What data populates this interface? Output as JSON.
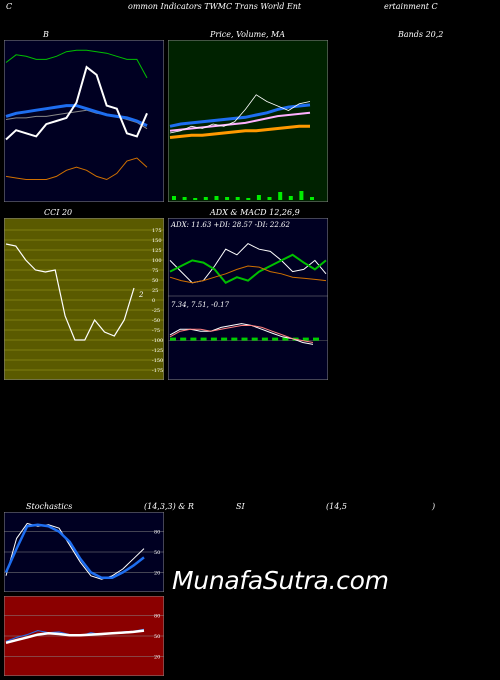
{
  "header": {
    "c": "C",
    "title": "ommon  Indicators TWMC Trans World Ent",
    "right": "ertainment C"
  },
  "labels": {
    "bb_b": "B",
    "bb_price": "Price,  Volume,  MA",
    "bb_overlap": "Bands 20,2",
    "cci": "CCI 20",
    "adx_title": "ADX  & MACD 12,26,9",
    "adx_values": "ADX: 11.63  +DI: 28.57 -DI: 22.62",
    "macd_values": "7.34,  7.51,  -0.17",
    "stoch": "Stochastics",
    "stoch_params": "(14,3,3) & R",
    "rsi_si": "SI",
    "rsi_params": "(14,5",
    "rsi_close": ")",
    "cci_last": "2",
    "watermark": "MunafaSutra.com"
  },
  "colors": {
    "bg": "#000000",
    "navy": "#000022",
    "darkgreen": "#002200",
    "olive": "#5a5a00",
    "rsi_red": "#8b0000",
    "blue": "#1e6ef0",
    "green": "#00c000",
    "orange": "#d07000",
    "white": "#ffffff"
  },
  "chart_data": [
    {
      "type": "line",
      "name": "bollinger",
      "series": [
        {
          "values": [
            88,
            93,
            92,
            90,
            90,
            92,
            95,
            96,
            96,
            95,
            94,
            92,
            90,
            90,
            78
          ]
        },
        {
          "values": [
            51,
            52,
            52,
            53,
            53,
            54,
            55,
            56,
            57,
            55,
            54,
            53,
            51,
            49,
            45
          ]
        },
        {
          "values": [
            53,
            55,
            56,
            57,
            58,
            59,
            60,
            60,
            58,
            56,
            54,
            53,
            52,
            50,
            47
          ]
        },
        {
          "values": [
            38,
            44,
            42,
            40,
            48,
            50,
            52,
            62,
            85,
            80,
            60,
            58,
            42,
            40,
            55
          ]
        },
        {
          "values": [
            14,
            13,
            12,
            12,
            12,
            14,
            18,
            20,
            18,
            14,
            12,
            16,
            24,
            26,
            20
          ]
        }
      ]
    },
    {
      "type": "line",
      "name": "price_volume_ma",
      "series": [
        {
          "values": [
            30,
            32,
            33,
            34,
            35,
            36,
            37,
            38,
            40,
            42,
            45,
            47,
            48,
            49
          ]
        },
        {
          "values": [
            26,
            27,
            28,
            29,
            30,
            31,
            32,
            33,
            35,
            37,
            39,
            40,
            41,
            42
          ]
        },
        {
          "values": [
            20,
            21,
            22,
            22,
            23,
            24,
            25,
            26,
            26,
            27,
            28,
            29,
            30,
            30
          ]
        },
        {
          "values": [
            24,
            26,
            30,
            28,
            32,
            30,
            34,
            45,
            58,
            52,
            48,
            44,
            50,
            52
          ]
        }
      ],
      "volume": [
        4,
        3,
        2,
        3,
        4,
        3,
        3,
        2,
        5,
        3,
        8,
        4,
        9,
        3
      ]
    },
    {
      "type": "line",
      "name": "cci",
      "y_ticks": [
        175,
        150,
        125,
        100,
        75,
        50,
        25,
        0,
        -25,
        -50,
        -75,
        -100,
        -125,
        -150,
        -175
      ],
      "values": [
        140,
        135,
        100,
        75,
        70,
        75,
        -40,
        -100,
        -100,
        -50,
        -80,
        -90,
        -50,
        30
      ]
    },
    {
      "type": "line",
      "name": "adx_macd",
      "adx_series": [
        {
          "values": [
            30,
            20,
            10,
            12,
            25,
            40,
            35,
            45,
            40,
            38,
            30,
            20,
            22,
            30,
            18
          ]
        },
        {
          "values": [
            20,
            25,
            30,
            28,
            22,
            10,
            15,
            12,
            20,
            25,
            30,
            35,
            28,
            22,
            30
          ]
        },
        {
          "values": [
            15,
            12,
            10,
            12,
            15,
            18,
            22,
            25,
            24,
            20,
            18,
            15,
            14,
            13,
            12
          ]
        }
      ],
      "macd_series": [
        {
          "values": [
            3,
            6,
            6,
            5,
            5,
            7,
            8,
            9,
            8,
            6,
            4,
            2,
            1,
            -1,
            -2
          ]
        },
        {
          "values": [
            2,
            5,
            6,
            6,
            5,
            6,
            7,
            8,
            8,
            7,
            5,
            3,
            1,
            0,
            -1
          ]
        }
      ],
      "hist": [
        1,
        1,
        0,
        -1,
        0,
        1,
        1,
        1,
        0,
        -1,
        -1,
        -1,
        0,
        -1,
        -1
      ]
    },
    {
      "type": "line",
      "name": "stochastics",
      "y_ticks": [
        80,
        50,
        20
      ],
      "series": [
        {
          "values": [
            15,
            70,
            92,
            88,
            90,
            85,
            60,
            35,
            15,
            10,
            15,
            25,
            40,
            55
          ]
        },
        {
          "values": [
            20,
            55,
            88,
            90,
            88,
            80,
            65,
            40,
            20,
            12,
            12,
            20,
            30,
            42
          ]
        }
      ]
    },
    {
      "type": "line",
      "name": "rsi",
      "y_ticks": [
        80,
        50,
        20
      ],
      "series": [
        {
          "values": [
            42,
            48,
            52,
            58,
            55,
            56,
            52,
            50,
            55,
            52,
            54,
            56,
            57,
            60
          ]
        },
        {
          "values": [
            40,
            44,
            48,
            52,
            54,
            53,
            51,
            51,
            52,
            53,
            54,
            55,
            56,
            58
          ]
        }
      ]
    }
  ]
}
